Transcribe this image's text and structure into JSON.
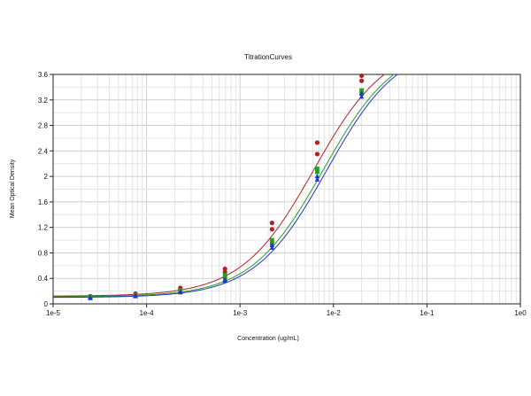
{
  "chart_data": {
    "type": "scatter",
    "title": "TitrationCurves",
    "xlabel": "Concentration (ug/mL)",
    "ylabel": "Mean Optical Density",
    "x_scale": "log",
    "xlim": [
      1e-05,
      1
    ],
    "ylim": [
      0,
      3.6
    ],
    "x_ticks": [
      1e-05,
      0.0001,
      0.001,
      0.01,
      0.1,
      1
    ],
    "x_tick_labels": [
      "1e-5",
      "1e-4",
      "1e-3",
      "1e-2",
      "1e-1",
      "1e0"
    ],
    "y_ticks": [
      0,
      0.4,
      0.8,
      1.2,
      1.6,
      2,
      2.4,
      2.8,
      3.2,
      3.6
    ],
    "y_tick_labels": [
      "0",
      "0.4",
      "0.8",
      "1.2",
      "1.6",
      "2",
      "2.4",
      "2.8",
      "3.2",
      "3.6"
    ],
    "grid": true,
    "legend": "none",
    "series": [
      {
        "color": "#b22222",
        "marker": "circle",
        "x": [
          2.5e-05,
          2.5e-05,
          7.6e-05,
          7.6e-05,
          0.00023,
          0.00023,
          0.00069,
          0.00069,
          0.0022,
          0.0022,
          0.0067,
          0.0067,
          0.02,
          0.02
        ],
        "y": [
          0.11,
          0.12,
          0.15,
          0.16,
          0.23,
          0.25,
          0.5,
          0.55,
          1.17,
          1.27,
          2.35,
          2.53,
          3.5,
          3.58
        ],
        "fit": {
          "bottom": 0.12,
          "top": 4.1,
          "ec50": 0.0062,
          "hill": 1.12
        }
      },
      {
        "color": "#22a022",
        "marker": "square",
        "x": [
          2.5e-05,
          2.5e-05,
          7.6e-05,
          7.6e-05,
          0.00023,
          0.00023,
          0.00069,
          0.00069,
          0.0022,
          0.0022,
          0.0067,
          0.0067,
          0.02,
          0.02
        ],
        "y": [
          0.1,
          0.11,
          0.13,
          0.14,
          0.2,
          0.21,
          0.41,
          0.45,
          0.95,
          1.0,
          2.07,
          2.12,
          3.3,
          3.35
        ],
        "fit": {
          "bottom": 0.11,
          "top": 4.1,
          "ec50": 0.0078,
          "hill": 1.12
        }
      },
      {
        "color": "#2233cc",
        "marker": "triangle",
        "x": [
          2.5e-05,
          2.5e-05,
          7.6e-05,
          7.6e-05,
          0.00023,
          0.00023,
          0.00069,
          0.00069,
          0.0022,
          0.0022,
          0.0067,
          0.0067,
          0.02,
          0.02
        ],
        "y": [
          0.09,
          0.1,
          0.12,
          0.13,
          0.18,
          0.19,
          0.36,
          0.38,
          0.88,
          0.92,
          1.95,
          2.0,
          3.25,
          3.3
        ],
        "fit": {
          "bottom": 0.1,
          "top": 4.1,
          "ec50": 0.0085,
          "hill": 1.12
        }
      }
    ]
  }
}
